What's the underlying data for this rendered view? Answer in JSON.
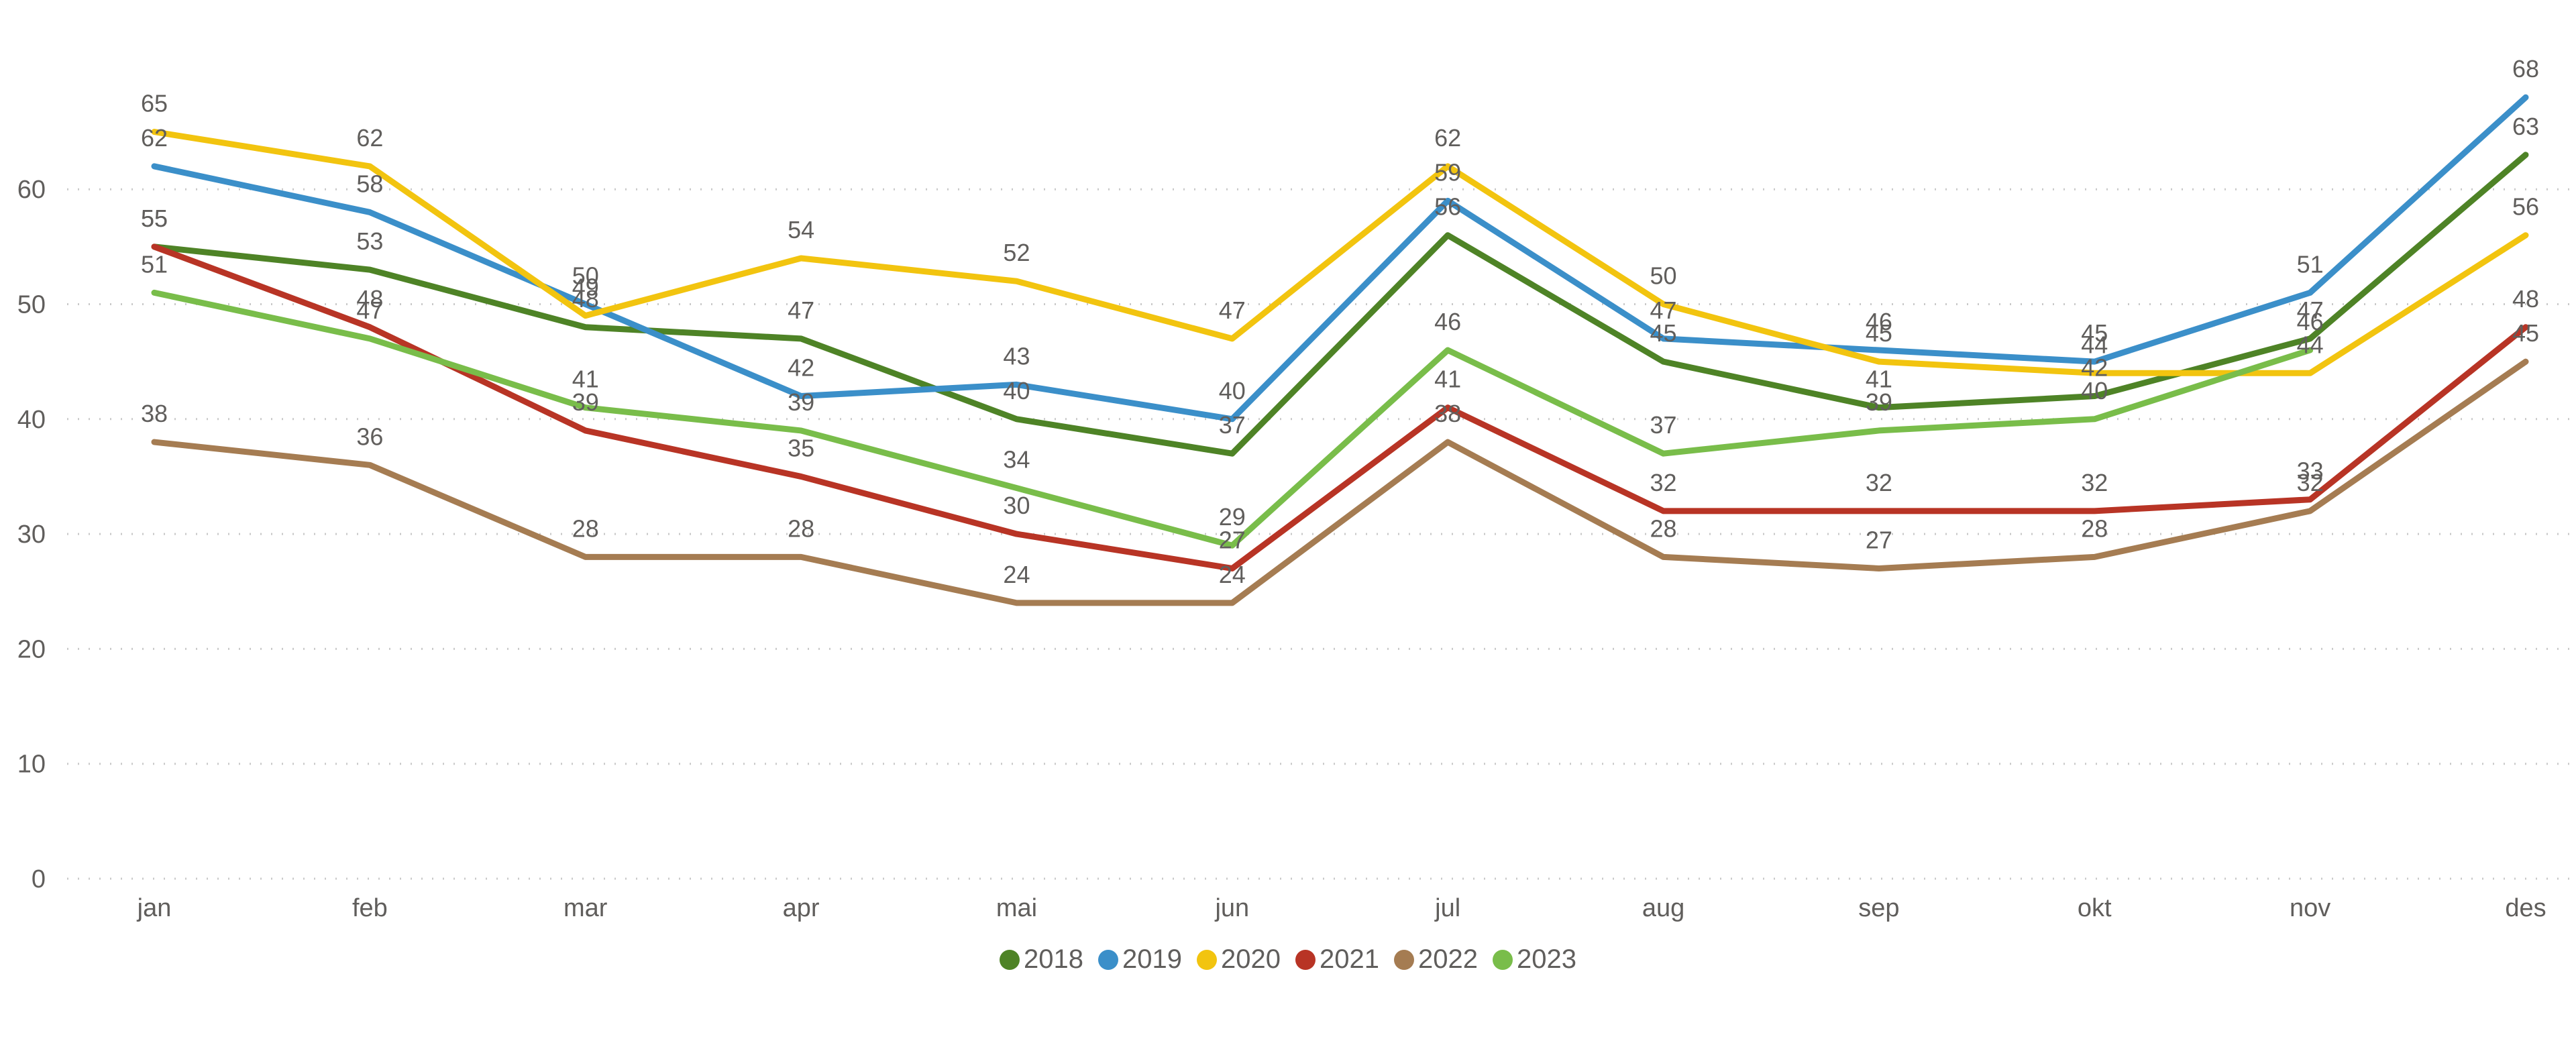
{
  "chart_data": {
    "type": "line",
    "title": "",
    "xlabel": "",
    "ylabel": "",
    "categories": [
      "jan",
      "feb",
      "mar",
      "apr",
      "mai",
      "jun",
      "jul",
      "aug",
      "sep",
      "okt",
      "nov",
      "des"
    ],
    "ylim": [
      0,
      70
    ],
    "yticks": [
      0,
      10,
      20,
      30,
      40,
      50,
      60
    ],
    "grid": true,
    "legend_position": "bottom-center",
    "data_labels": true,
    "series": [
      {
        "name": "2018",
        "color": "#4e8326",
        "values": [
          55,
          53,
          48,
          47,
          40,
          37,
          56,
          45,
          41,
          42,
          47,
          63
        ]
      },
      {
        "name": "2019",
        "color": "#3b8fc9",
        "values": [
          62,
          58,
          50,
          42,
          43,
          40,
          59,
          47,
          46,
          45,
          51,
          68
        ]
      },
      {
        "name": "2020",
        "color": "#f2c40f",
        "values": [
          65,
          62,
          49,
          54,
          52,
          47,
          62,
          50,
          45,
          44,
          44,
          56
        ]
      },
      {
        "name": "2021",
        "color": "#b83425",
        "values": [
          55,
          48,
          39,
          35,
          30,
          27,
          41,
          32,
          32,
          32,
          33,
          48
        ]
      },
      {
        "name": "2022",
        "color": "#a57c52",
        "values": [
          38,
          36,
          28,
          28,
          24,
          24,
          38,
          28,
          27,
          28,
          32,
          45
        ]
      },
      {
        "name": "2023",
        "color": "#79bd4a",
        "values": [
          51,
          47,
          41,
          39,
          34,
          29,
          46,
          37,
          39,
          40,
          46,
          null
        ]
      }
    ]
  }
}
